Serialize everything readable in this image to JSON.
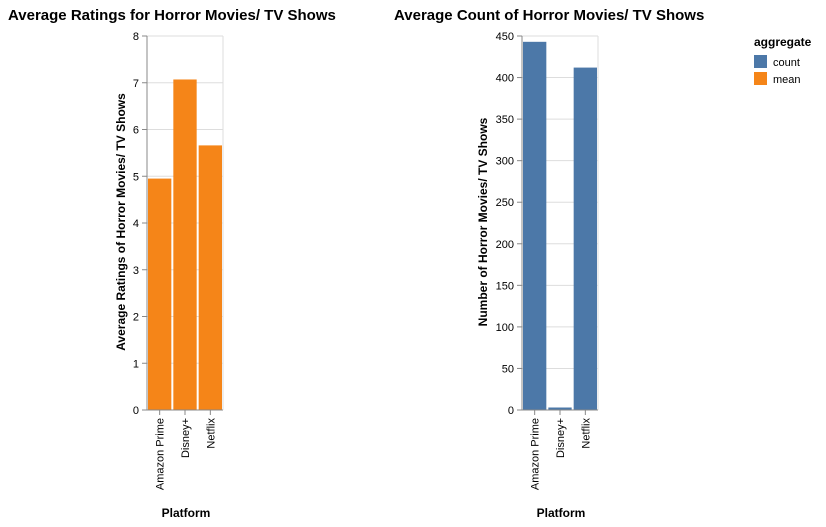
{
  "chart_data": [
    {
      "type": "bar",
      "title": "Average Ratings for Horror Movies/ TV Shows",
      "xlabel": "Platform",
      "ylabel": "Average Ratings of Horror Movies/ TV Shows",
      "categories": [
        "Amazon Prime",
        "Disney+",
        "Netflix"
      ],
      "series": [
        {
          "name": "mean",
          "values": [
            4.95,
            7.07,
            5.66
          ]
        }
      ],
      "ylim": [
        0,
        8
      ],
      "yticks": [
        0,
        1,
        2,
        3,
        4,
        5,
        6,
        7,
        8
      ],
      "color": "#f58518",
      "grid": true
    },
    {
      "type": "bar",
      "title": "Average Count of Horror Movies/ TV Shows",
      "xlabel": "Platform",
      "ylabel": "Number of Horror Movies/ TV Shows",
      "categories": [
        "Amazon Prime",
        "Disney+",
        "Netflix"
      ],
      "series": [
        {
          "name": "count",
          "values": [
            443,
            3,
            412
          ]
        }
      ],
      "ylim": [
        0,
        450
      ],
      "yticks": [
        0,
        50,
        100,
        150,
        200,
        250,
        300,
        350,
        400,
        450
      ],
      "color": "#4c78a8",
      "grid": true
    }
  ],
  "legend": {
    "title": "aggregate",
    "placement": "top-right",
    "items": [
      {
        "label": "count",
        "color": "#4c78a8"
      },
      {
        "label": "mean",
        "color": "#f58518"
      }
    ]
  }
}
